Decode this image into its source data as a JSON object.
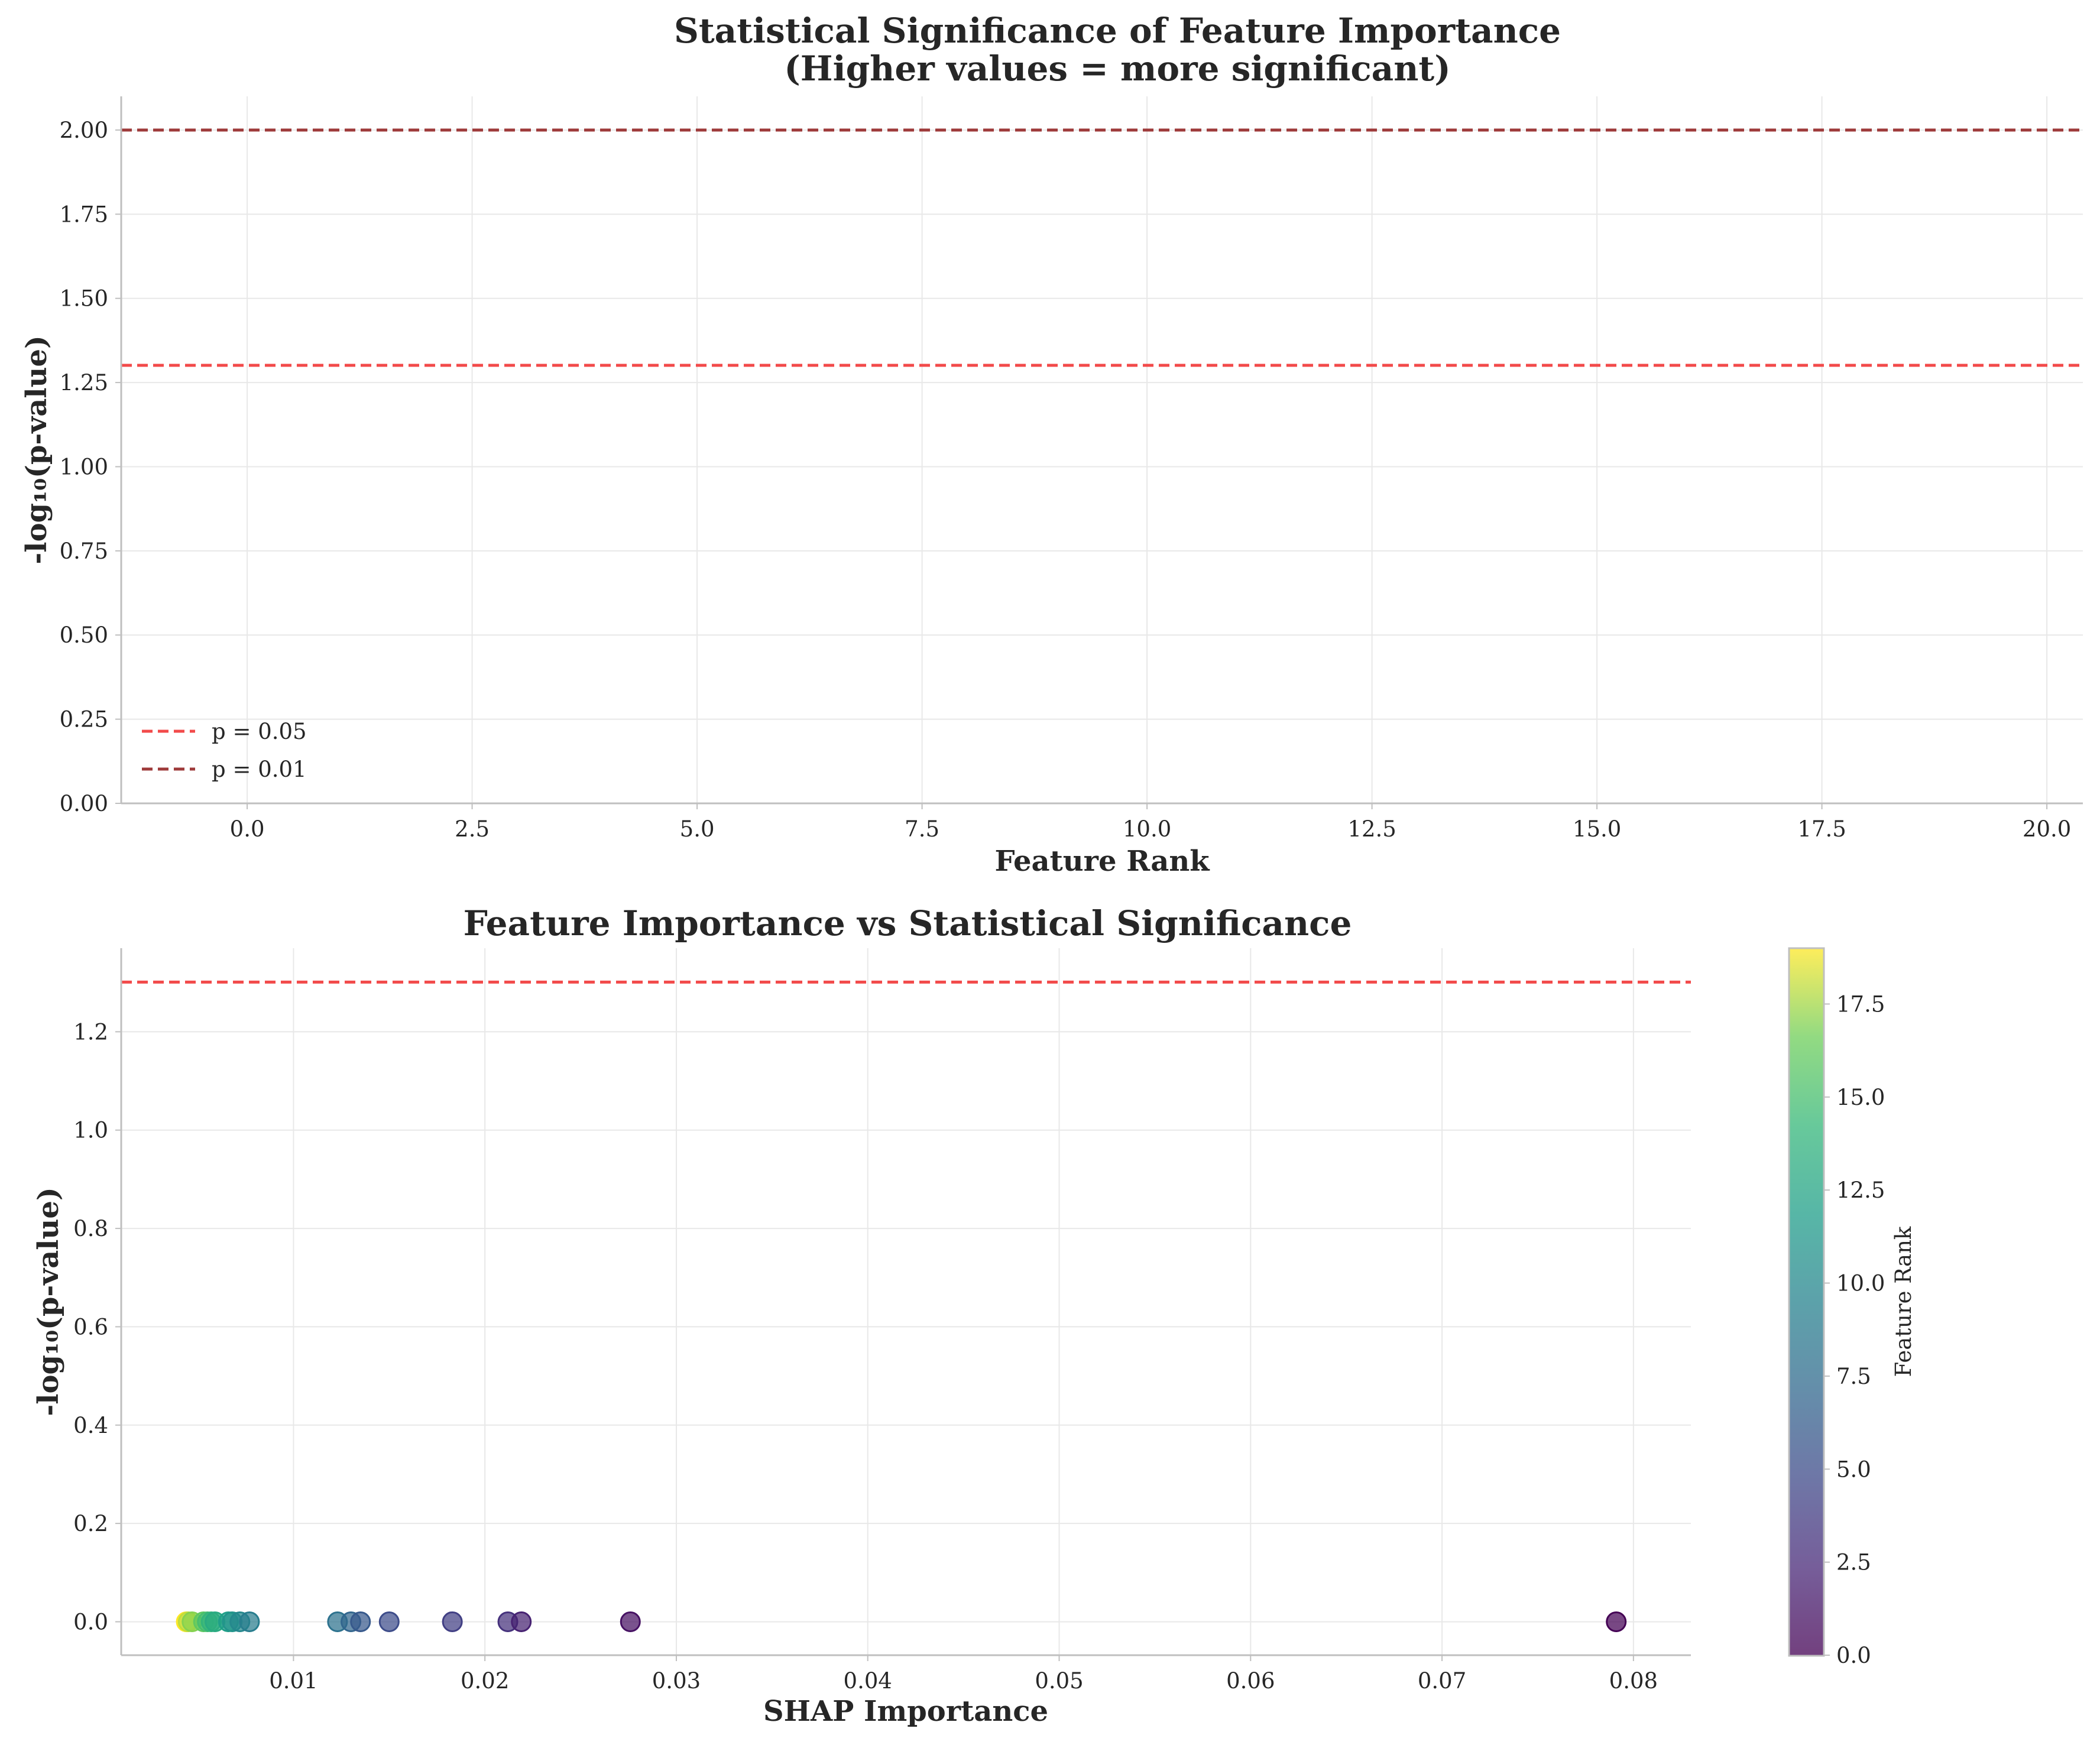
{
  "chart_data": [
    {
      "type": "line",
      "title_line1": "Statistical Significance of Feature Importance",
      "title_line2": "(Higher values = more significant)",
      "xlabel": "Feature Rank",
      "ylabel": "-log₁₀(p-value)",
      "xlim": [
        -1.4,
        20.4
      ],
      "ylim": [
        0,
        2.1
      ],
      "xticks": [
        0.0,
        2.5,
        5.0,
        7.5,
        10.0,
        12.5,
        15.0,
        17.5,
        20.0
      ],
      "xtick_labels": [
        "0.0",
        "2.5",
        "5.0",
        "7.5",
        "10.0",
        "12.5",
        "15.0",
        "17.5",
        "20.0"
      ],
      "yticks": [
        0.0,
        0.25,
        0.5,
        0.75,
        1.0,
        1.25,
        1.5,
        1.75,
        2.0
      ],
      "ytick_labels": [
        "0.00",
        "0.25",
        "0.50",
        "0.75",
        "1.00",
        "1.25",
        "1.50",
        "1.75",
        "2.00"
      ],
      "grid": true,
      "hlines": [
        {
          "y": 1.301,
          "color": "#f24a4a",
          "style": "dashed",
          "label": "p = 0.05"
        },
        {
          "y": 2.0,
          "color": "#9e3a3a",
          "style": "dashed",
          "label": "p = 0.01"
        }
      ],
      "legend_position": "lower-left",
      "series": []
    },
    {
      "type": "scatter",
      "title": "Feature Importance vs Statistical Significance",
      "xlabel": "SHAP Importance",
      "ylabel": "-log₁₀(p-value)",
      "xlim": [
        0.001,
        0.083
      ],
      "ylim": [
        -0.068,
        1.37
      ],
      "xticks": [
        0.01,
        0.02,
        0.03,
        0.04,
        0.05,
        0.06,
        0.07,
        0.08
      ],
      "xtick_labels": [
        "0.01",
        "0.02",
        "0.03",
        "0.04",
        "0.05",
        "0.06",
        "0.07",
        "0.08"
      ],
      "yticks": [
        0.0,
        0.2,
        0.4,
        0.6,
        0.8,
        1.0,
        1.2
      ],
      "ytick_labels": [
        "0.0",
        "0.2",
        "0.4",
        "0.6",
        "0.8",
        "1.0",
        "1.2"
      ],
      "grid": true,
      "hlines": [
        {
          "y": 1.301,
          "color": "#f24a4a",
          "style": "dashed"
        }
      ],
      "points": [
        {
          "rank": 0,
          "x": 0.0791,
          "y": 0.0
        },
        {
          "rank": 1,
          "x": 0.0276,
          "y": 0.0
        },
        {
          "rank": 2,
          "x": 0.0219,
          "y": 0.0
        },
        {
          "rank": 3,
          "x": 0.0212,
          "y": 0.0
        },
        {
          "rank": 4,
          "x": 0.0183,
          "y": 0.0
        },
        {
          "rank": 5,
          "x": 0.015,
          "y": 0.0
        },
        {
          "rank": 6,
          "x": 0.0135,
          "y": 0.0
        },
        {
          "rank": 7,
          "x": 0.013,
          "y": 0.0
        },
        {
          "rank": 8,
          "x": 0.0123,
          "y": 0.0
        },
        {
          "rank": 9,
          "x": 0.0077,
          "y": 0.0
        },
        {
          "rank": 10,
          "x": 0.0072,
          "y": 0.0
        },
        {
          "rank": 11,
          "x": 0.0068,
          "y": 0.0
        },
        {
          "rank": 12,
          "x": 0.0066,
          "y": 0.0
        },
        {
          "rank": 13,
          "x": 0.0059,
          "y": 0.0
        },
        {
          "rank": 14,
          "x": 0.0057,
          "y": 0.0
        },
        {
          "rank": 15,
          "x": 0.0055,
          "y": 0.0
        },
        {
          "rank": 16,
          "x": 0.0053,
          "y": 0.0
        },
        {
          "rank": 17,
          "x": 0.0047,
          "y": 0.0
        },
        {
          "rank": 18,
          "x": 0.0045,
          "y": 0.0
        },
        {
          "rank": 19,
          "x": 0.0044,
          "y": 0.0
        }
      ],
      "colormap": "viridis",
      "colorbar": {
        "label": "Feature Rank",
        "range": [
          0,
          19
        ],
        "ticks": [
          0.0,
          2.5,
          5.0,
          7.5,
          10.0,
          12.5,
          15.0,
          17.5
        ],
        "tick_labels": [
          "0.0",
          "2.5",
          "5.0",
          "7.5",
          "10.0",
          "12.5",
          "15.0",
          "17.5"
        ]
      }
    }
  ]
}
